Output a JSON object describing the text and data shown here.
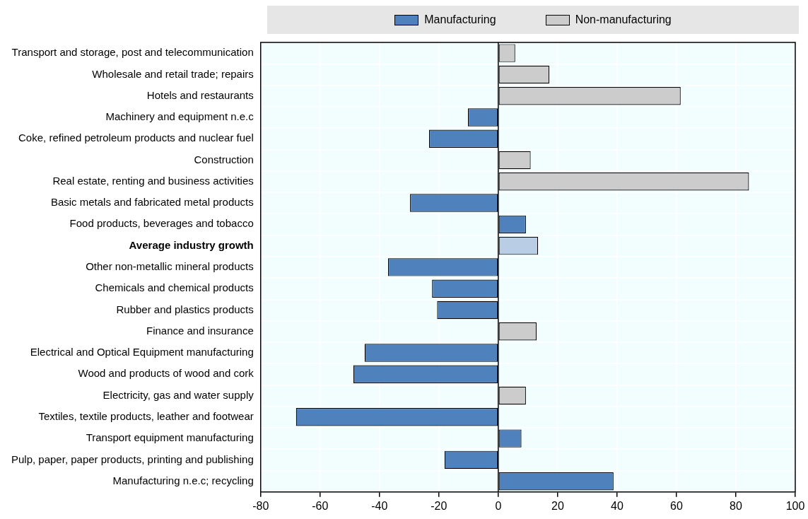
{
  "chart_data": {
    "type": "bar",
    "orientation": "horizontal",
    "legend": "top",
    "grid": true,
    "categories": [
      "Transport and storage, post and telecommunication",
      "Wholesale and retail trade; repairs",
      "Hotels and restaurants",
      "Machinery and equipment n.e.c",
      "Coke, refined petroleum products and nuclear fuel",
      "Construction",
      "Real estate, renting and business activities",
      "Basic metals and fabricated metal products",
      "Food products, beverages and tobacco",
      "Average industry growth",
      "Other non-metallic mineral products",
      "Chemicals and chemical products",
      "Rubber and plastics products",
      "Finance and insurance",
      "Electrical and Optical Equipment manufacturing",
      "Wood and products of wood and cork",
      "Electricity, gas and water supply",
      "Textiles, textile products, leather and footwear",
      "Transport equipment manufacturing",
      "Pulp, paper, paper products, printing and publishing",
      "Manufacturing n.e.c; recycling"
    ],
    "series": [
      {
        "name": "Manufacturing",
        "color": "#4f81bd",
        "values": [
          null,
          null,
          null,
          -10.2,
          -23.3,
          null,
          null,
          -29.7,
          9.3,
          null,
          -37.1,
          -22.3,
          -20.6,
          null,
          -45.0,
          -48.8,
          null,
          -68.1,
          7.8,
          -18.1,
          38.8
        ]
      },
      {
        "name": "Non-manufacturing",
        "color": "#cccccc",
        "values": [
          5.7,
          17.2,
          61.4,
          null,
          null,
          10.9,
          84.4,
          null,
          null,
          null,
          null,
          null,
          null,
          12.9,
          null,
          null,
          9.3,
          null,
          null,
          null,
          null
        ]
      },
      {
        "color": "#b9cde5",
        "values": [
          null,
          null,
          null,
          null,
          null,
          null,
          null,
          null,
          null,
          13.4,
          null,
          null,
          null,
          null,
          null,
          null,
          null,
          null,
          null,
          null,
          null
        ]
      }
    ],
    "xlim": [
      -80,
      100
    ],
    "xticks": [
      -80,
      -60,
      -40,
      -20,
      0,
      20,
      40,
      60,
      80,
      100
    ]
  }
}
